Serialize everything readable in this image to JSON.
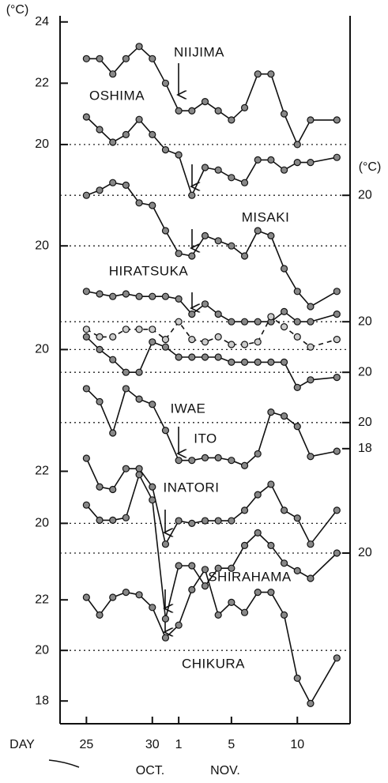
{
  "chart_data": {
    "type": "line",
    "y_unit": "(°C)",
    "y2_unit": "(°C)",
    "x_label": "DAY",
    "month_labels": [
      "OCT.",
      "NOV."
    ],
    "x": [
      "10-25",
      "10-26",
      "10-27",
      "10-28",
      "10-29",
      "10-30",
      "10-31",
      "11-01",
      "11-02",
      "11-03",
      "11-04",
      "11-05",
      "11-06",
      "11-07",
      "11-08",
      "11-09",
      "11-10",
      "11-11",
      "11-13"
    ],
    "xlim": [
      "10-23",
      "11-14"
    ],
    "xticks": [
      {
        "value": "10-25",
        "label": "25"
      },
      {
        "value": "10-30",
        "label": "30"
      },
      {
        "value": "11-01",
        "label": "1"
      },
      {
        "value": "11-05",
        "label": "5"
      },
      {
        "value": "11-10",
        "label": "10"
      }
    ],
    "series": [
      {
        "name": "NIIJIMA",
        "ylim": [
          1.1,
          24.2
        ],
        "yticks": [
          24,
          22,
          20
        ],
        "ref": 20,
        "values": [
          22.8,
          22.8,
          22.3,
          22.8,
          23.2,
          22.8,
          22.0,
          21.1,
          21.1,
          21.4,
          21.1,
          20.8,
          21.2,
          22.3,
          22.3,
          21.0,
          20.0,
          20.8,
          20.8
        ]
      },
      {
        "name": "OSHIMA",
        "axis": "y2",
        "ylim": [
          -0.9,
          27.1
        ],
        "yticks": [
          20
        ],
        "ref": 20,
        "values": [
          23.1,
          22.6,
          22.1,
          22.4,
          23.0,
          22.4,
          21.8,
          21.6,
          20.0,
          21.1,
          21.0,
          20.7,
          20.5,
          21.4,
          21.4,
          21.0,
          21.3,
          21.3,
          21.5
        ]
      },
      {
        "name": "MISAKI",
        "ylim": [
          1.1,
          29.1
        ],
        "yticks": [
          20
        ],
        "ref": 20,
        "values": [
          22.0,
          22.2,
          22.5,
          22.4,
          21.7,
          21.6,
          20.6,
          19.7,
          19.6,
          20.4,
          20.2,
          20.0,
          19.6,
          20.6,
          20.4,
          19.1,
          18.2,
          17.6,
          18.2
        ]
      },
      {
        "name": "HIRATSUKA",
        "axis": "y2",
        "ylim": [
          4.1,
          32.1
        ],
        "yticks": [
          20
        ],
        "ref": 20,
        "values": [
          21.2,
          21.1,
          21.0,
          21.1,
          21.0,
          21.0,
          21.0,
          20.9,
          20.3,
          20.7,
          20.3,
          20.0,
          20.0,
          20.0,
          20.0,
          20.4,
          20.0,
          20.0,
          20.3
        ]
      },
      {
        "dashed": true,
        "ylim": [
          5.2,
          33.2
        ],
        "yticks": [
          20
        ],
        "ref": 20,
        "values": [
          20.8,
          20.5,
          20.5,
          20.8,
          20.8,
          20.8,
          20.4,
          21.1,
          20.4,
          20.3,
          20.5,
          20.2,
          20.2,
          20.3,
          21.3,
          20.9,
          20.5,
          20.1,
          20.4
        ]
      },
      {
        "name": "IWAE",
        "axis": "y2",
        "ylim": [
          6.1,
          34.1
        ],
        "yticks": [
          20
        ],
        "ref": 20,
        "values": [
          21.4,
          20.9,
          20.5,
          20.0,
          20.0,
          21.2,
          21.0,
          20.6,
          20.6,
          20.6,
          20.6,
          20.4,
          20.4,
          20.4,
          20.4,
          20.4,
          19.4,
          19.7,
          19.8
        ]
      },
      {
        "name": "ITO",
        "axis": "y2",
        "ylim": [
          -3.1,
          51.2
        ],
        "yticks": [
          20,
          18
        ],
        "ref": 20,
        "values": [
          22.6,
          21.6,
          19.2,
          22.6,
          21.8,
          21.4,
          19.4,
          17.1,
          17.1,
          17.3,
          17.3,
          17.1,
          16.7,
          17.6,
          20.8,
          20.5,
          19.7,
          17.4,
          17.8
        ]
      },
      {
        "name": "INATORI",
        "ylim": [
          12.3,
          39.5
        ],
        "yticks": [
          22,
          20
        ],
        "ref": 20,
        "values": [
          22.5,
          21.4,
          21.3,
          22.1,
          22.1,
          21.4,
          19.2,
          20.1,
          20.0,
          20.1,
          20.1,
          20.1,
          20.5,
          21.1,
          21.5,
          20.5,
          20.2,
          19.2,
          20.5
        ]
      },
      {
        "name": "SHIRAHAMA",
        "axis": "y2",
        "ylim": [
          13.25,
          41.25
        ],
        "yticks": [
          20
        ],
        "ref": 20,
        "values": [
          21.9,
          21.3,
          21.3,
          21.4,
          23.1,
          22.1,
          17.4,
          19.5,
          19.5,
          18.7,
          19.4,
          19.4,
          20.3,
          20.8,
          20.3,
          19.6,
          19.3,
          19.0,
          20.0
        ]
      },
      {
        "name": "CHIKURA",
        "ylim": [
          17.1,
          45.1
        ],
        "yticks": [
          22,
          20,
          18
        ],
        "ref": 20,
        "values": [
          22.1,
          21.4,
          22.1,
          22.3,
          22.2,
          21.7,
          20.5,
          21.0,
          22.4,
          23.2,
          21.4,
          21.9,
          21.5,
          22.3,
          22.3,
          21.4,
          18.9,
          17.9,
          19.7
        ]
      }
    ]
  }
}
